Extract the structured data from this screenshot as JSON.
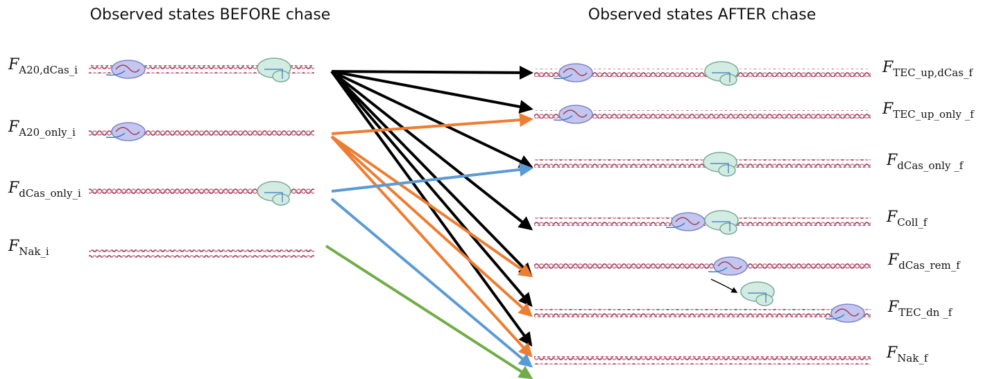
{
  "headers": {
    "before": "Observed states BEFORE chase",
    "after": "Observed states AFTER chase"
  },
  "before_states": [
    {
      "symbol": "F",
      "subscript": "A20,dCas_i"
    },
    {
      "symbol": "F",
      "subscript": "A20_only_i"
    },
    {
      "symbol": "F",
      "subscript": "dCas_only_i"
    },
    {
      "symbol": "F",
      "subscript": "Nak_i"
    }
  ],
  "after_states": [
    {
      "symbol": "F",
      "subscript": "TEC_up,dCas_f"
    },
    {
      "symbol": "F",
      "subscript": "TEC_up_only _f"
    },
    {
      "symbol": "F",
      "subscript": "dCas_only _f"
    },
    {
      "symbol": "F",
      "subscript": "Coll_f"
    },
    {
      "symbol": "F",
      "subscript": "dCas_rem_f"
    },
    {
      "symbol": "F",
      "subscript": "TEC_dn _f"
    },
    {
      "symbol": "F",
      "subscript": "Nak_f"
    }
  ]
}
